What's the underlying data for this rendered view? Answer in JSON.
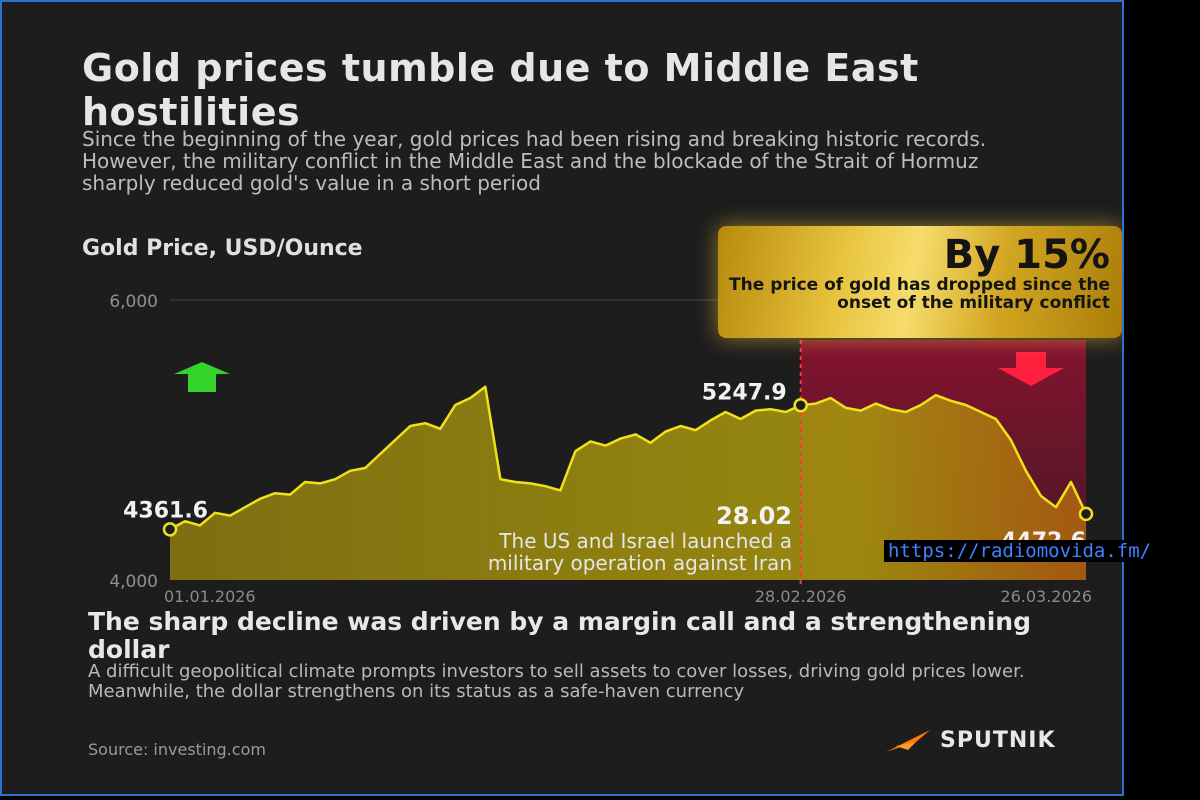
{
  "header": {
    "title": "Gold prices tumble due to Middle East hostilities",
    "subtitle": "Since the beginning of the year, gold prices had been rising and breaking historic records. However, the military conflict in the Middle East and the blockade of the Strait of Hormuz sharply reduced gold's value in a short period",
    "chart_label": "Gold Price, USD/Ounce"
  },
  "callout": {
    "big": "By 15%",
    "small": "The price of gold has dropped since the onset of the military conflict"
  },
  "annotation": {
    "value": "28.02",
    "text_line1": "The US and Israel launched a",
    "text_line2": "military operation against Iran"
  },
  "bottom": {
    "heading": "The sharp decline was driven by a margin call and a strengthening dollar",
    "text": "A difficult geopolitical climate prompts investors to sell assets to cover losses, driving gold prices lower. Meanwhile, the dollar strengthens on its status as a safe-haven currency"
  },
  "footer": {
    "source": "Source: investing.com",
    "brand": "SPUTNIK"
  },
  "overlay_url": "https://radiomovida.fm/",
  "colors": {
    "background": "#1d1d1d",
    "gold_fill": "#a8960e",
    "gold_line": "#f1e11b",
    "conflict_region": "#8a1230",
    "up_arrow": "#35d42d",
    "down_arrow": "#ff2040",
    "brand_accent": "#ff7a00"
  },
  "icons": {
    "up": "up-arrow-icon",
    "down": "down-arrow-icon",
    "brand": "sputnik-logo-icon"
  },
  "chart_data": {
    "type": "area",
    "xlabel": "",
    "ylabel": "",
    "ylim": [
      4000,
      6000
    ],
    "grid": true,
    "y_ticks": [
      "4,000",
      "6,000"
    ],
    "x_ticks": [
      "01.01.2026",
      "28.02.2026",
      "26.03.2026"
    ],
    "labeled_points": [
      {
        "date": "01.01.2026",
        "label": "4361.6"
      },
      {
        "date": "28.02.2026",
        "label": "5247.9"
      },
      {
        "date": "26.03.2026",
        "label": "4472.6"
      }
    ],
    "x": [
      "01.01.2026",
      "02.01.2026",
      "05.01.2026",
      "06.01.2026",
      "07.01.2026",
      "08.01.2026",
      "09.01.2026",
      "12.01.2026",
      "13.01.2026",
      "14.01.2026",
      "15.01.2026",
      "16.01.2026",
      "19.01.2026",
      "20.01.2026",
      "21.01.2026",
      "22.01.2026",
      "23.01.2026",
      "26.01.2026",
      "27.01.2026",
      "28.01.2026",
      "29.01.2026",
      "30.01.2026",
      "02.02.2026",
      "03.02.2026",
      "04.02.2026",
      "05.02.2026",
      "06.02.2026",
      "09.02.2026",
      "10.02.2026",
      "11.02.2026",
      "12.02.2026",
      "13.02.2026",
      "16.02.2026",
      "17.02.2026",
      "18.02.2026",
      "19.02.2026",
      "20.02.2026",
      "23.02.2026",
      "24.02.2026",
      "25.02.2026",
      "26.02.2026",
      "27.02.2026",
      "28.02.2026",
      "02.03.2026",
      "03.03.2026",
      "04.03.2026",
      "05.03.2026",
      "06.03.2026",
      "09.03.2026",
      "10.03.2026",
      "11.03.2026",
      "12.03.2026",
      "13.03.2026",
      "16.03.2026",
      "17.03.2026",
      "18.03.2026",
      "19.03.2026",
      "20.03.2026",
      "23.03.2026",
      "24.03.2026",
      "25.03.2026",
      "26.03.2026"
    ],
    "series": [
      {
        "values": [
          4361.6,
          4420,
          4390,
          4480,
          4460,
          4520,
          4580,
          4620,
          4610,
          4700,
          4690,
          4720,
          4780,
          4800,
          4900,
          5000,
          5100,
          5120,
          5080,
          5250,
          5300,
          5380,
          4720,
          4700,
          4690,
          4670,
          4640,
          4920,
          4990,
          4960,
          5010,
          5040,
          4980,
          5060,
          5100,
          5070,
          5140,
          5200,
          5150,
          5210,
          5220,
          5200,
          5247.9,
          5260,
          5300,
          5230,
          5210,
          5260,
          5220,
          5200,
          5250,
          5320,
          5280,
          5250,
          5200,
          5150,
          5000,
          4780,
          4600,
          4520,
          4700,
          4472.6
        ]
      }
    ]
  }
}
